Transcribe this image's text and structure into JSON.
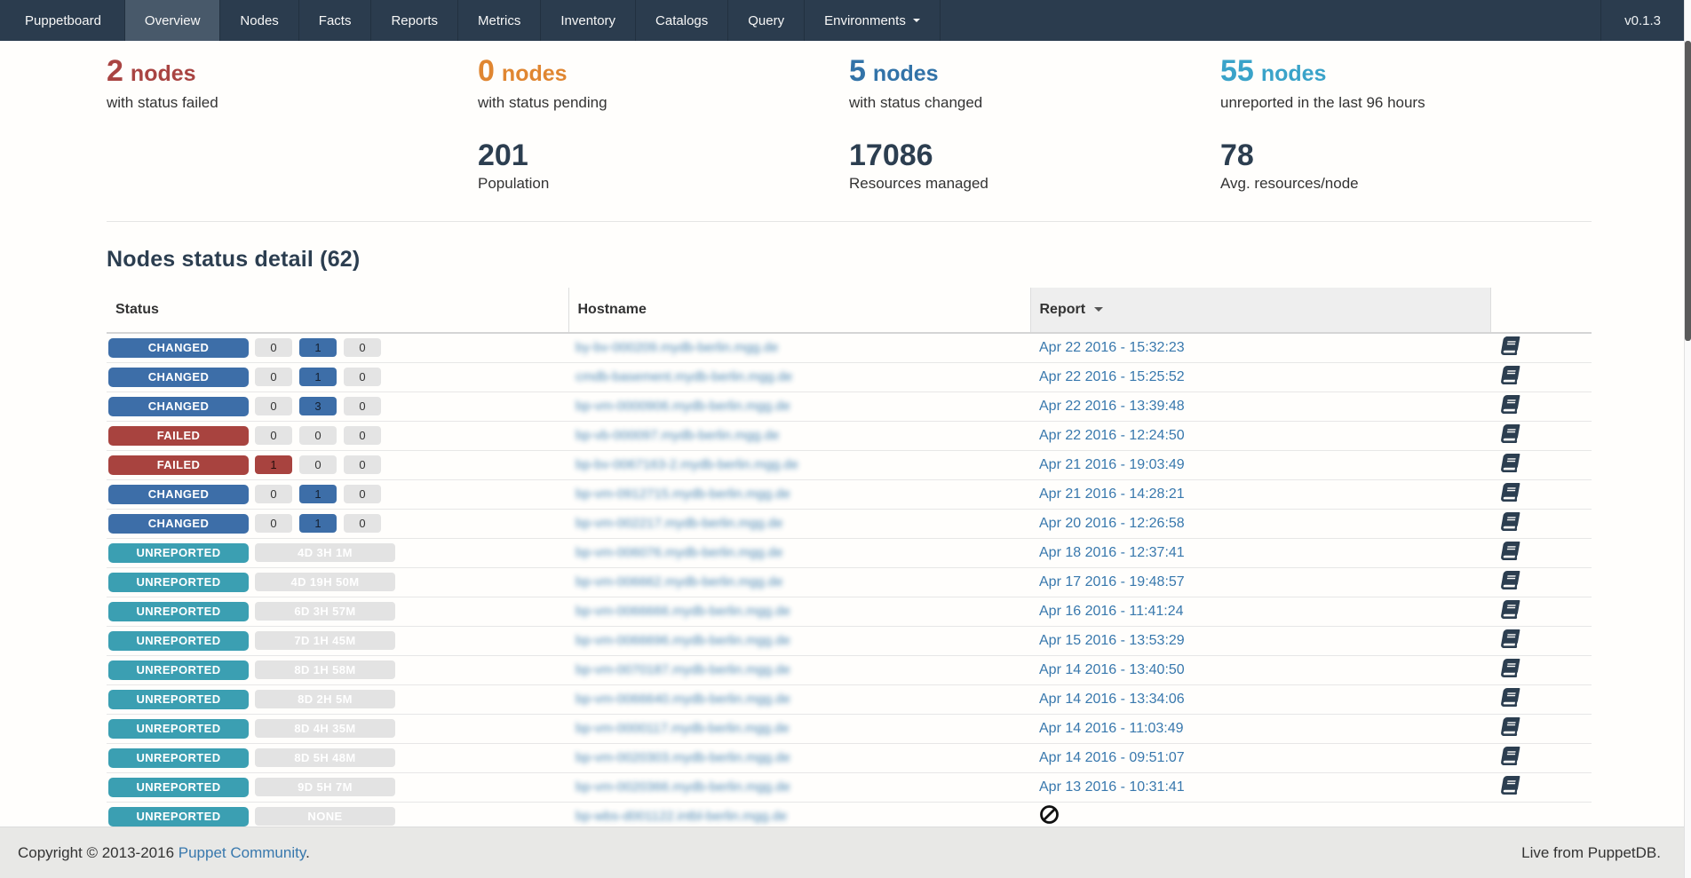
{
  "colors": {
    "navbar_bg": "#2b3c4e",
    "navbar_active_bg": "#48596a",
    "failed": "#a94442",
    "pending": "#e08631",
    "changed": "#3d6ea8",
    "unreported": "#3b9fb2",
    "link": "#3878ad",
    "stat_number": "#2c3e50",
    "sorted_header_bg": "#eeeeee",
    "footer_bg": "#e8e8e6"
  },
  "icons": {
    "environments_dropdown": "caret-down-icon",
    "report_sort": "caret-down-icon",
    "report_action": "book-icon",
    "no_report": "ban-icon"
  },
  "nav": {
    "brand": "Puppetboard",
    "items": [
      {
        "label": "Overview",
        "active": true
      },
      {
        "label": "Nodes",
        "active": false
      },
      {
        "label": "Facts",
        "active": false
      },
      {
        "label": "Reports",
        "active": false
      },
      {
        "label": "Metrics",
        "active": false
      },
      {
        "label": "Inventory",
        "active": false
      },
      {
        "label": "Catalogs",
        "active": false
      },
      {
        "label": "Query",
        "active": false
      },
      {
        "label": "Environments",
        "active": false,
        "dropdown": true
      }
    ],
    "version": "v0.1.3"
  },
  "stats": [
    {
      "value": "2",
      "unit": "nodes",
      "label": "with status failed",
      "variant": "failed",
      "secondary": null
    },
    {
      "value": "0",
      "unit": "nodes",
      "label": "with status pending",
      "variant": "pending",
      "secondary": {
        "value": "201",
        "label": "Population"
      }
    },
    {
      "value": "5",
      "unit": "nodes",
      "label": "with status changed",
      "variant": "changed",
      "secondary": {
        "value": "17086",
        "label": "Resources managed"
      }
    },
    {
      "value": "55",
      "unit": "nodes",
      "label": "unreported in the last 96 hours",
      "variant": "unreported",
      "secondary": {
        "value": "78",
        "label": "Avg. resources/node"
      }
    }
  ],
  "table": {
    "title": "Nodes status detail (62)",
    "headers": {
      "status": "Status",
      "hostname": "Hostname",
      "report": "Report"
    },
    "sorted_by": "Report",
    "sort_direction": "desc",
    "hostnames_redacted": true,
    "rows": [
      {
        "status": "CHANGED",
        "status_variant": "changed",
        "counts": [
          {
            "text": "0",
            "variant": "default"
          },
          {
            "text": "1",
            "variant": "changed"
          },
          {
            "text": "0",
            "variant": "default"
          }
        ],
        "hostname": "by-bv-000209.mydb-berlin.mgg.de",
        "report_time": "Apr 22 2016 - 15:32:23",
        "has_report": true
      },
      {
        "status": "CHANGED",
        "status_variant": "changed",
        "counts": [
          {
            "text": "0",
            "variant": "default"
          },
          {
            "text": "1",
            "variant": "changed"
          },
          {
            "text": "0",
            "variant": "default"
          }
        ],
        "hostname": "cmdb-basement.mydb-berlin.mgg.de",
        "report_time": "Apr 22 2016 - 15:25:52",
        "has_report": true
      },
      {
        "status": "CHANGED",
        "status_variant": "changed",
        "counts": [
          {
            "text": "0",
            "variant": "default"
          },
          {
            "text": "3",
            "variant": "changed"
          },
          {
            "text": "0",
            "variant": "default"
          }
        ],
        "hostname": "bp-vm-0000906.mydb-berlin.mgg.de",
        "report_time": "Apr 22 2016 - 13:39:48",
        "has_report": true
      },
      {
        "status": "FAILED",
        "status_variant": "failed",
        "counts": [
          {
            "text": "0",
            "variant": "default"
          },
          {
            "text": "0",
            "variant": "default"
          },
          {
            "text": "0",
            "variant": "default"
          }
        ],
        "hostname": "bp-vb-000097.mydb-berlin.mgg.de",
        "report_time": "Apr 22 2016 - 12:24:50",
        "has_report": true
      },
      {
        "status": "FAILED",
        "status_variant": "failed",
        "counts": [
          {
            "text": "1",
            "variant": "failed"
          },
          {
            "text": "0",
            "variant": "default"
          },
          {
            "text": "0",
            "variant": "default"
          }
        ],
        "hostname": "bp-bv-0067163-2.mydb-berlin.mgg.de",
        "report_time": "Apr 21 2016 - 19:03:49",
        "has_report": true
      },
      {
        "status": "CHANGED",
        "status_variant": "changed",
        "counts": [
          {
            "text": "0",
            "variant": "default"
          },
          {
            "text": "1",
            "variant": "changed"
          },
          {
            "text": "0",
            "variant": "default"
          }
        ],
        "hostname": "bp-vm-0912715.mydb-berlin.mgg.de",
        "report_time": "Apr 21 2016 - 14:28:21",
        "has_report": true
      },
      {
        "status": "CHANGED",
        "status_variant": "changed",
        "counts": [
          {
            "text": "0",
            "variant": "default"
          },
          {
            "text": "1",
            "variant": "changed"
          },
          {
            "text": "0",
            "variant": "default"
          }
        ],
        "hostname": "bp-vm-002217.mydb-berlin.mgg.de",
        "report_time": "Apr 20 2016 - 12:26:58",
        "has_report": true
      },
      {
        "status": "UNREPORTED",
        "status_variant": "unreported",
        "duration": "4D 3H 1M",
        "hostname": "bp-vm-006076.mydb-berlin.mgg.de",
        "report_time": "Apr 18 2016 - 12:37:41",
        "has_report": true
      },
      {
        "status": "UNREPORTED",
        "status_variant": "unreported",
        "duration": "4D 19H 50M",
        "hostname": "bp-vm-006662.mydb-berlin.mgg.de",
        "report_time": "Apr 17 2016 - 19:48:57",
        "has_report": true
      },
      {
        "status": "UNREPORTED",
        "status_variant": "unreported",
        "duration": "6D 3H 57M",
        "hostname": "bp-vm-0066666.mydb-berlin.mgg.de",
        "report_time": "Apr 16 2016 - 11:41:24",
        "has_report": true
      },
      {
        "status": "UNREPORTED",
        "status_variant": "unreported",
        "duration": "7D 1H 45M",
        "hostname": "bp-vm-0066696.mydb-berlin.mgg.de",
        "report_time": "Apr 15 2016 - 13:53:29",
        "has_report": true
      },
      {
        "status": "UNREPORTED",
        "status_variant": "unreported",
        "duration": "8D 1H 58M",
        "hostname": "bp-vm-0070187.mydb-berlin.mgg.de",
        "report_time": "Apr 14 2016 - 13:40:50",
        "has_report": true
      },
      {
        "status": "UNREPORTED",
        "status_variant": "unreported",
        "duration": "8D 2H 5M",
        "hostname": "bp-vm-0066640.mydb-berlin.mgg.de",
        "report_time": "Apr 14 2016 - 13:34:06",
        "has_report": true
      },
      {
        "status": "UNREPORTED",
        "status_variant": "unreported",
        "duration": "8D 4H 35M",
        "hostname": "bp-vm-0000117.mydb-berlin.mgg.de",
        "report_time": "Apr 14 2016 - 11:03:49",
        "has_report": true
      },
      {
        "status": "UNREPORTED",
        "status_variant": "unreported",
        "duration": "8D 5H 48M",
        "hostname": "bp-vm-0020303.mydb-berlin.mgg.de",
        "report_time": "Apr 14 2016 - 09:51:07",
        "has_report": true
      },
      {
        "status": "UNREPORTED",
        "status_variant": "unreported",
        "duration": "9D 5H 7M",
        "hostname": "bp-vm-0020366.mydb-berlin.mgg.de",
        "report_time": "Apr 13 2016 - 10:31:41",
        "has_report": true
      },
      {
        "status": "UNREPORTED",
        "status_variant": "unreported",
        "duration": "NONE",
        "hostname": "bp-wbs-d001122.intbl-berlin.mgg.de",
        "report_time": null,
        "has_report": false
      }
    ]
  },
  "footer": {
    "copyright_prefix": "Copyright © 2013-2016 ",
    "copyright_link": "Puppet Community",
    "copyright_suffix": ".",
    "right_text": "Live from PuppetDB."
  }
}
